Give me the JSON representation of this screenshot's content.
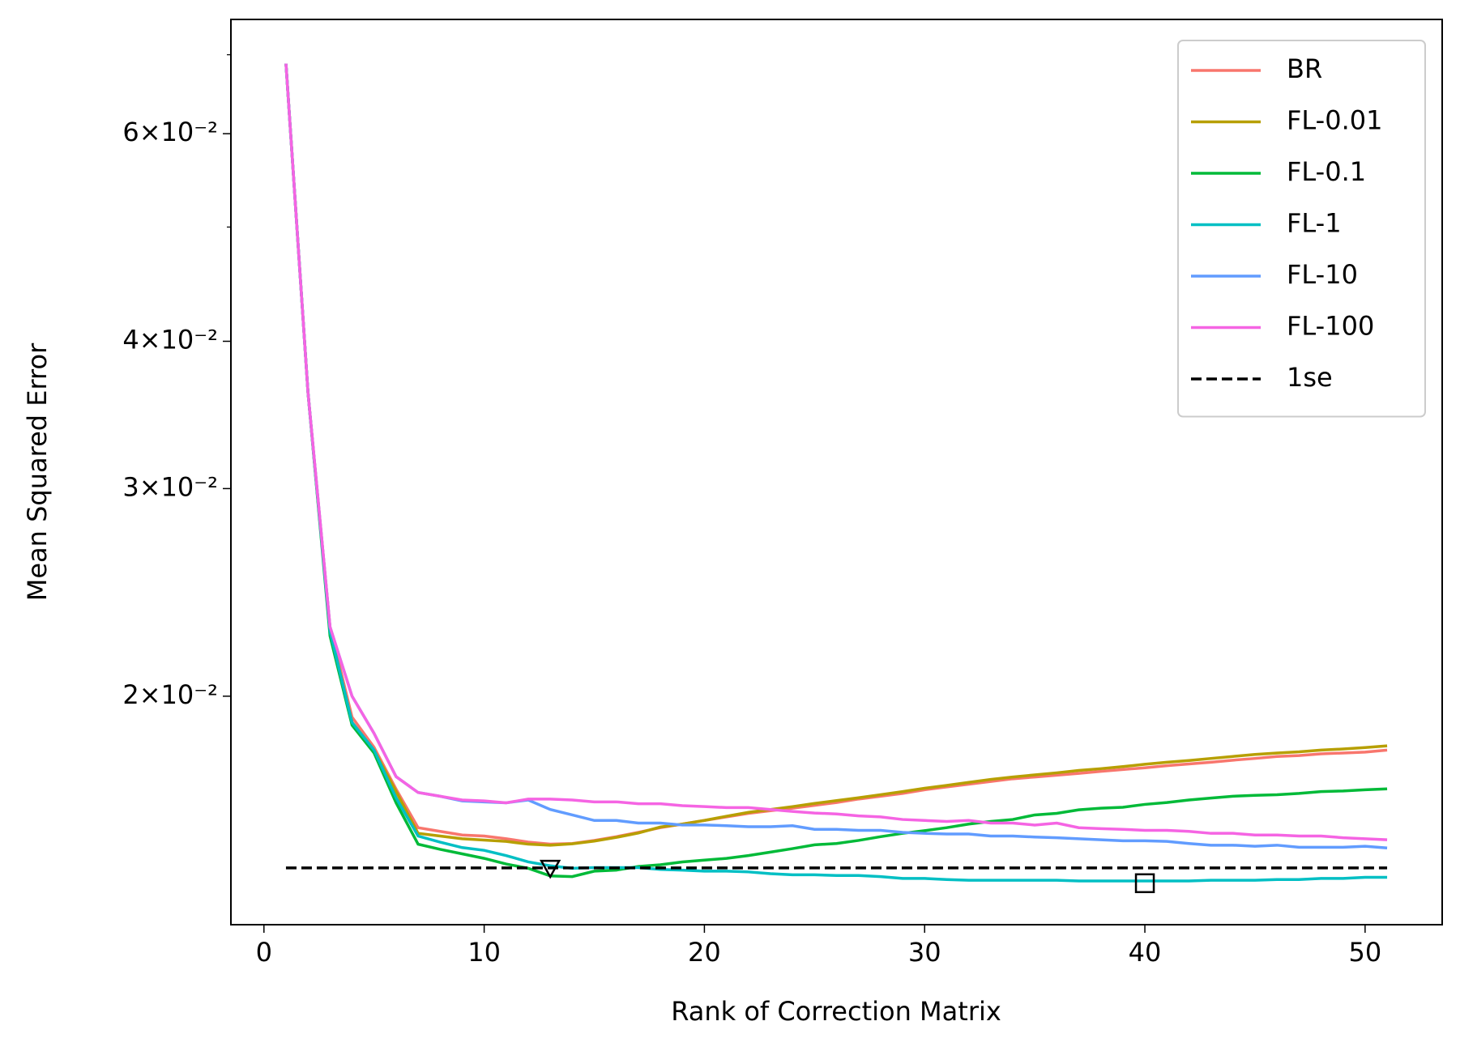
{
  "chart_data": {
    "type": "line",
    "x_label": "Rank of Correction Matrix",
    "y_label": "Mean Squared Error",
    "x": [
      1,
      2,
      3,
      4,
      5,
      6,
      7,
      8,
      9,
      10,
      11,
      12,
      13,
      14,
      15,
      16,
      17,
      18,
      19,
      20,
      21,
      22,
      23,
      24,
      25,
      26,
      27,
      28,
      29,
      30,
      31,
      32,
      33,
      34,
      35,
      36,
      37,
      38,
      39,
      40,
      41,
      42,
      43,
      44,
      45,
      46,
      47,
      48,
      49,
      50,
      51
    ],
    "xlim": [
      -1.5,
      53.5
    ],
    "xticks": [
      0,
      10,
      20,
      30,
      40,
      50
    ],
    "ylim": [
      0.0128,
      0.075
    ],
    "y_log": true,
    "yticks": [
      {
        "value": 0.02,
        "label": "2×10⁻²"
      },
      {
        "value": 0.03,
        "label": "3×10⁻²"
      },
      {
        "value": 0.04,
        "label": "4×10⁻²"
      },
      {
        "value": 0.06,
        "label": "6×10⁻²"
      }
    ],
    "yminorticks": [
      0.05,
      0.07
    ],
    "legend": "upper right",
    "series": [
      {
        "name": "BR",
        "color": "#f8766d",
        "values": [
          0.0688,
          0.0362,
          0.0229,
          0.0192,
          0.0181,
          0.01668,
          0.01547,
          0.01536,
          0.01525,
          0.01522,
          0.01514,
          0.01504,
          0.01498,
          0.015,
          0.01509,
          0.0152,
          0.01533,
          0.01547,
          0.01558,
          0.01569,
          0.0158,
          0.01591,
          0.01599,
          0.01607,
          0.01616,
          0.01625,
          0.01636,
          0.01645,
          0.01654,
          0.01666,
          0.01675,
          0.01684,
          0.01693,
          0.01702,
          0.01708,
          0.01714,
          0.0172,
          0.01727,
          0.01733,
          0.01739,
          0.01746,
          0.01752,
          0.01758,
          0.01765,
          0.01771,
          0.01778,
          0.01781,
          0.01787,
          0.0179,
          0.01793,
          0.018
        ]
      },
      {
        "name": "FL-0.01",
        "color": "#b79f00",
        "values": [
          0.0688,
          0.0362,
          0.0227,
          0.019,
          0.018,
          0.0166,
          0.0153,
          0.01522,
          0.01514,
          0.0151,
          0.01506,
          0.01498,
          0.01495,
          0.01499,
          0.01507,
          0.01518,
          0.01531,
          0.01549,
          0.01558,
          0.01569,
          0.01582,
          0.01594,
          0.01603,
          0.01612,
          0.01622,
          0.01631,
          0.0164,
          0.0165,
          0.0166,
          0.01671,
          0.0168,
          0.0169,
          0.017,
          0.01708,
          0.01715,
          0.01722,
          0.0173,
          0.01736,
          0.01743,
          0.01751,
          0.01758,
          0.01764,
          0.01771,
          0.01778,
          0.01785,
          0.0179,
          0.01794,
          0.018,
          0.01804,
          0.01809,
          0.01815
        ]
      },
      {
        "name": "FL-0.1",
        "color": "#00ba38",
        "values": [
          0.0688,
          0.0362,
          0.0225,
          0.0189,
          0.0179,
          0.01624,
          0.01498,
          0.01483,
          0.0147,
          0.01457,
          0.01441,
          0.01429,
          0.01408,
          0.01406,
          0.01421,
          0.01424,
          0.01434,
          0.01439,
          0.01447,
          0.01452,
          0.01457,
          0.01465,
          0.01475,
          0.01485,
          0.01496,
          0.015,
          0.01509,
          0.0152,
          0.0153,
          0.01538,
          0.01547,
          0.01558,
          0.01566,
          0.01572,
          0.01586,
          0.01591,
          0.01602,
          0.01607,
          0.0161,
          0.01619,
          0.01625,
          0.01633,
          0.01639,
          0.01645,
          0.01648,
          0.0165,
          0.01654,
          0.0166,
          0.01662,
          0.01666,
          0.01669
        ]
      },
      {
        "name": "FL-1",
        "color": "#00bfc4",
        "values": [
          0.0688,
          0.0362,
          0.0227,
          0.019,
          0.018,
          0.0164,
          0.01522,
          0.01504,
          0.01488,
          0.0148,
          0.01465,
          0.01447,
          0.01436,
          0.01429,
          0.01431,
          0.01431,
          0.01431,
          0.01426,
          0.01424,
          0.01421,
          0.01421,
          0.01419,
          0.01414,
          0.01411,
          0.01411,
          0.01409,
          0.01409,
          0.01406,
          0.01401,
          0.01401,
          0.01398,
          0.01396,
          0.01396,
          0.01396,
          0.01396,
          0.01396,
          0.01394,
          0.01394,
          0.01394,
          0.01394,
          0.01394,
          0.01394,
          0.01396,
          0.01396,
          0.01396,
          0.01398,
          0.01398,
          0.01401,
          0.01401,
          0.01404,
          0.01404
        ]
      },
      {
        "name": "FL-10",
        "color": "#619cff",
        "values": [
          0.0688,
          0.0362,
          0.0229,
          0.02,
          0.0186,
          0.01709,
          0.01657,
          0.01645,
          0.0163,
          0.01627,
          0.01624,
          0.01633,
          0.01603,
          0.01586,
          0.01569,
          0.01569,
          0.01561,
          0.01561,
          0.01555,
          0.01555,
          0.01553,
          0.0155,
          0.0155,
          0.01553,
          0.01542,
          0.01542,
          0.01539,
          0.01539,
          0.01533,
          0.0153,
          0.01528,
          0.01528,
          0.01522,
          0.01522,
          0.01519,
          0.01517,
          0.01514,
          0.01511,
          0.01508,
          0.01508,
          0.01506,
          0.015,
          0.01495,
          0.01495,
          0.01492,
          0.01495,
          0.01489,
          0.01489,
          0.01489,
          0.01492,
          0.01487
        ]
      },
      {
        "name": "FL-100",
        "color": "#f564e3",
        "values": [
          0.0688,
          0.0362,
          0.0229,
          0.02,
          0.0186,
          0.01709,
          0.01657,
          0.01645,
          0.01633,
          0.0163,
          0.01624,
          0.01636,
          0.01636,
          0.01633,
          0.01627,
          0.01627,
          0.01621,
          0.01621,
          0.01615,
          0.01612,
          0.01609,
          0.01609,
          0.01603,
          0.01597,
          0.01592,
          0.01589,
          0.01583,
          0.0158,
          0.01572,
          0.01569,
          0.01566,
          0.01569,
          0.01561,
          0.01561,
          0.01555,
          0.01561,
          0.01547,
          0.01544,
          0.01542,
          0.01539,
          0.01539,
          0.01536,
          0.0153,
          0.0153,
          0.01525,
          0.01525,
          0.01522,
          0.01522,
          0.01517,
          0.01514,
          0.01511
        ]
      },
      {
        "name": "1se",
        "color": "#000000",
        "dashed": true,
        "x": [
          1,
          51
        ],
        "values": [
          0.0143,
          0.0143
        ]
      }
    ],
    "markers": [
      {
        "x": 13,
        "y": 0.0143,
        "marker": "triangle-down"
      },
      {
        "x": 40,
        "y": 0.01388,
        "marker": "square"
      }
    ]
  }
}
